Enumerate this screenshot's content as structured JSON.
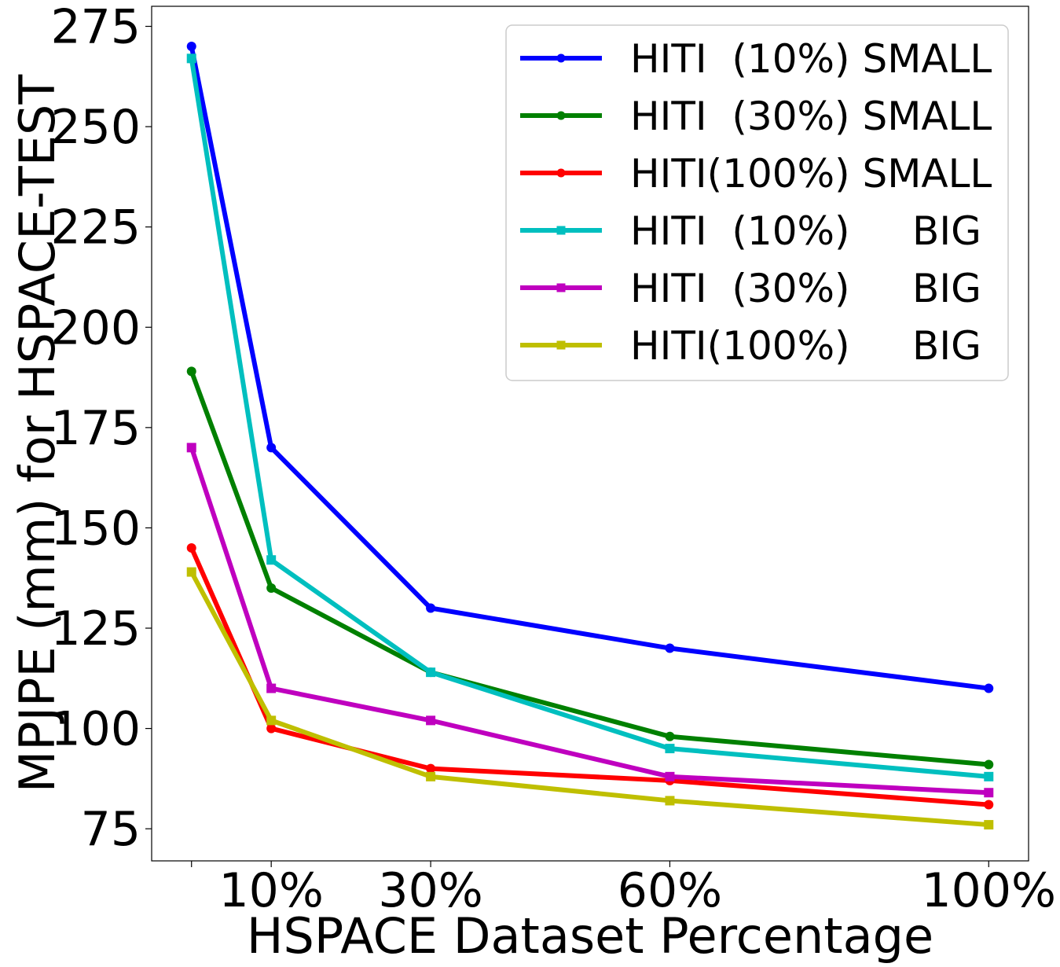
{
  "chart_data": {
    "type": "line",
    "xlabel": "HSPACE Dataset Percentage",
    "ylabel": "MPJPE (mm) for HSPACE-TEST",
    "x": [
      0,
      10,
      30,
      60,
      100
    ],
    "xticks": [
      {
        "value": 0,
        "label": ""
      },
      {
        "value": 10,
        "label": "10%"
      },
      {
        "value": 30,
        "label": "30%"
      },
      {
        "value": 60,
        "label": "60%"
      },
      {
        "value": 100,
        "label": "100%"
      }
    ],
    "yticks": [
      75,
      100,
      125,
      150,
      175,
      200,
      225,
      250,
      275
    ],
    "xlim": [
      -5,
      105
    ],
    "ylim": [
      67,
      280
    ],
    "grid": false,
    "legend_position": "top-right",
    "series": [
      {
        "name": "HITI  (10%) SMALL",
        "color": "#0000ff",
        "marker": "circle",
        "values": [
          270,
          170,
          130,
          120,
          110
        ]
      },
      {
        "name": "HITI  (30%) SMALL",
        "color": "#008000",
        "marker": "circle",
        "values": [
          189,
          135,
          114,
          98,
          91
        ]
      },
      {
        "name": "HITI(100%) SMALL",
        "color": "#ff0000",
        "marker": "circle",
        "values": [
          145,
          100,
          90,
          87,
          81
        ]
      },
      {
        "name": "HITI  (10%)     BIG",
        "color": "#00bfbf",
        "marker": "square",
        "values": [
          267,
          142,
          114,
          95,
          88
        ]
      },
      {
        "name": "HITI  (30%)     BIG",
        "color": "#bf00bf",
        "marker": "square",
        "values": [
          170,
          110,
          102,
          88,
          84
        ]
      },
      {
        "name": "HITI(100%)     BIG",
        "color": "#bfbf00",
        "marker": "square",
        "values": [
          139,
          102,
          88,
          82,
          76
        ]
      }
    ]
  }
}
